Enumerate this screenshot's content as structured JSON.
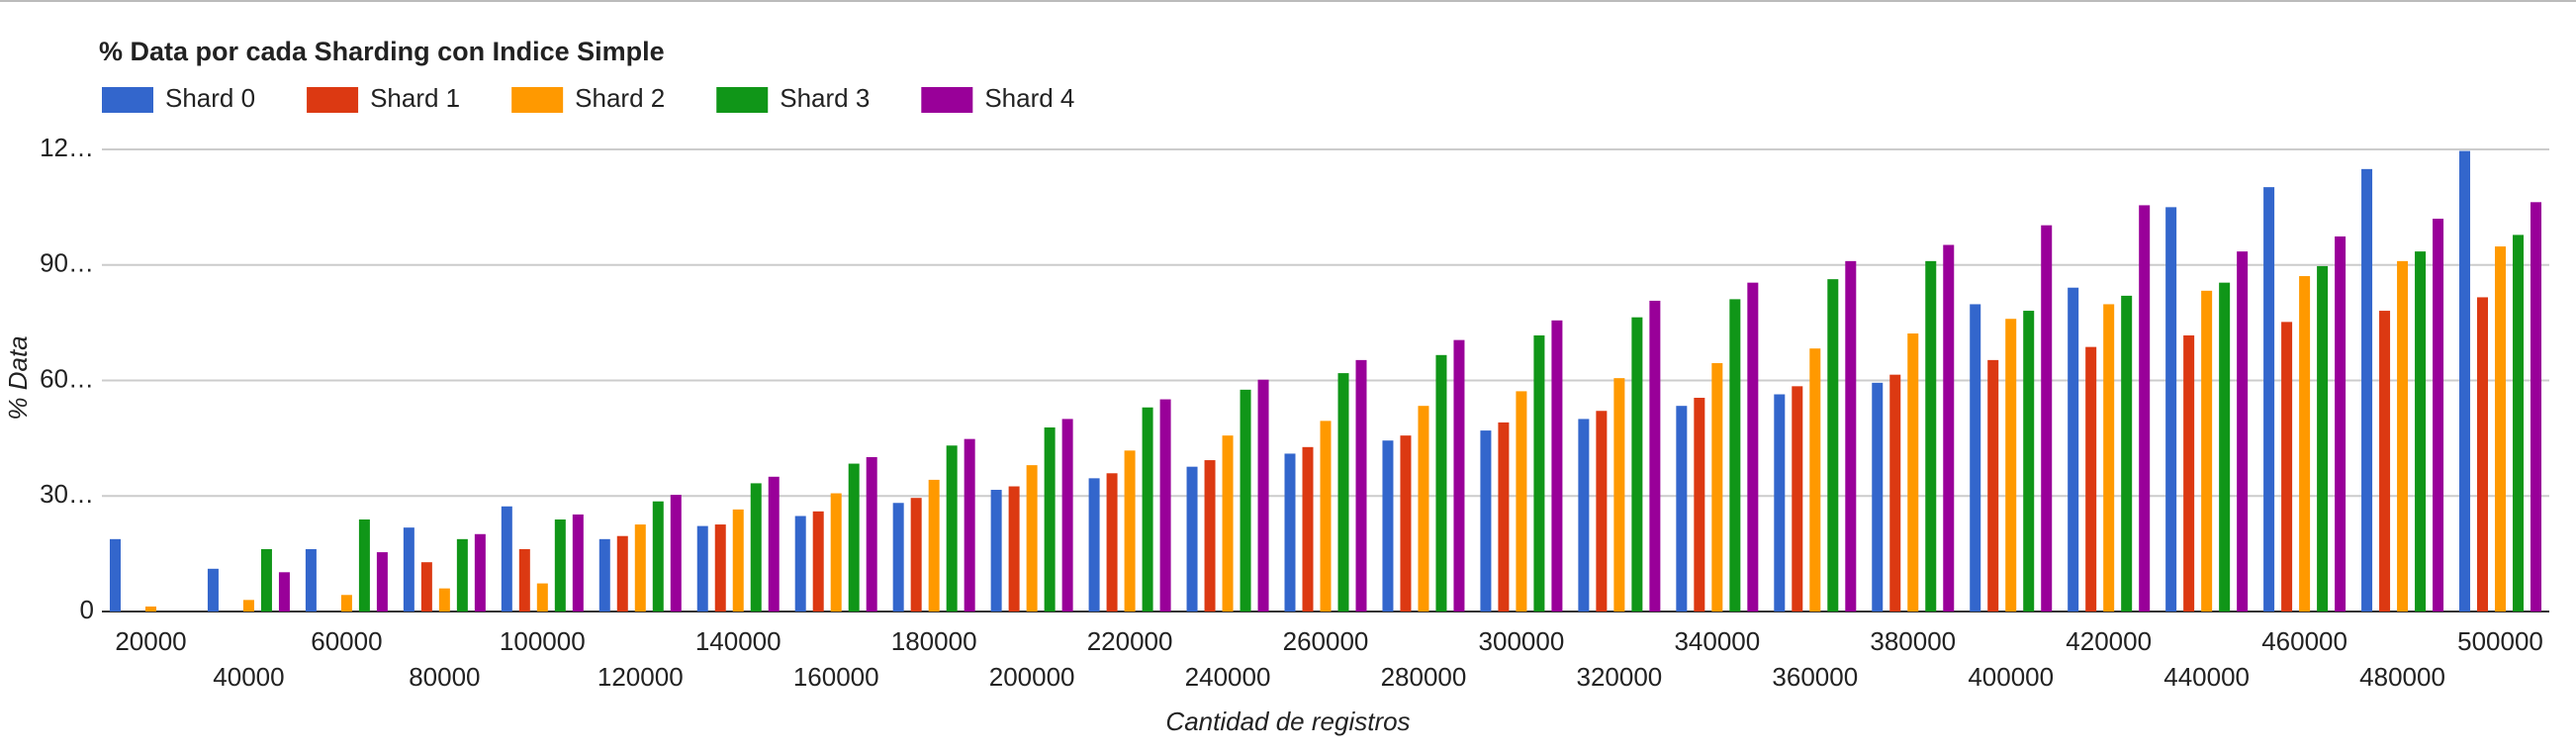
{
  "chart_data": {
    "type": "bar",
    "title": "% Data por cada Sharding con Indice Simple",
    "x_label": "Cantidad de registros",
    "y_label": "% Data",
    "categories": [
      "20000",
      "40000",
      "60000",
      "80000",
      "100000",
      "120000",
      "140000",
      "160000",
      "180000",
      "200000",
      "220000",
      "240000",
      "260000",
      "280000",
      "300000",
      "320000",
      "340000",
      "360000",
      "380000",
      "400000",
      "420000",
      "440000",
      "460000",
      "480000",
      "500000"
    ],
    "series": [
      {
        "name": "Shard 0",
        "color": "#3366cc",
        "values": [
          18.8,
          11.1,
          16.2,
          21.8,
          27.3,
          18.8,
          22.2,
          24.8,
          28.2,
          31.6,
          34.6,
          37.6,
          41,
          44.4,
          47,
          50,
          53.4,
          56.4,
          59.4,
          79.8,
          84.1,
          105,
          110.2,
          114.9,
          119.6
        ]
      },
      {
        "name": "Shard 1",
        "color": "#dc3912",
        "values": [
          0,
          0,
          0,
          12.8,
          16.2,
          19.6,
          22.6,
          26,
          29.5,
          32.5,
          35.9,
          39.3,
          42.7,
          45.7,
          49.1,
          52.1,
          55.5,
          58.5,
          61.5,
          65.3,
          68.7,
          71.7,
          75.2,
          78.1,
          81.6
        ]
      },
      {
        "name": "Shard 2",
        "color": "#ff9900",
        "values": [
          1.3,
          3,
          4.3,
          6,
          7.3,
          22.6,
          26.5,
          30.7,
          34.2,
          38,
          41.8,
          45.7,
          49.5,
          53.4,
          57.2,
          60.6,
          64.5,
          68.3,
          72.2,
          76,
          79.8,
          83.3,
          87.1,
          91,
          94.8
        ]
      },
      {
        "name": "Shard 3",
        "color": "#109618",
        "values": [
          0,
          16.2,
          23.9,
          18.8,
          23.9,
          28.6,
          33.3,
          38.4,
          43.1,
          47.8,
          53,
          57.6,
          61.9,
          66.6,
          71.7,
          76.4,
          81.1,
          86.3,
          91,
          78.1,
          82,
          85.4,
          89.7,
          93.5,
          97.8
        ]
      },
      {
        "name": "Shard 4",
        "color": "#990099",
        "values": [
          0,
          10.2,
          15.4,
          20.1,
          25.2,
          30.3,
          35,
          40.1,
          44.8,
          50,
          55.1,
          60.2,
          65.3,
          70.5,
          75.6,
          80.7,
          85.4,
          91,
          95.2,
          100.3,
          105.5,
          93.5,
          97.4,
          102,
          106.3
        ]
      }
    ],
    "ylim": [
      0,
      120
    ],
    "yticks": [
      0,
      {
        "value": 30,
        "label": "30…"
      },
      {
        "value": 60,
        "label": "60…"
      },
      {
        "value": 90,
        "label": "90…"
      },
      {
        "value": 120,
        "label": "12…"
      }
    ],
    "grid": true,
    "legend": "top"
  }
}
